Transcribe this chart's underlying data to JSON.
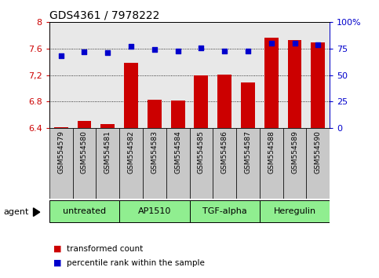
{
  "title": "GDS4361 / 7978222",
  "samples": [
    "GSM554579",
    "GSM554580",
    "GSM554581",
    "GSM554582",
    "GSM554583",
    "GSM554584",
    "GSM554585",
    "GSM554586",
    "GSM554587",
    "GSM554588",
    "GSM554589",
    "GSM554590"
  ],
  "bar_values": [
    6.41,
    6.5,
    6.46,
    7.38,
    6.83,
    6.81,
    7.2,
    7.21,
    7.09,
    7.77,
    7.73,
    7.7
  ],
  "dot_values": [
    68,
    72,
    71,
    77,
    74,
    73,
    76,
    73,
    73,
    80,
    80,
    79
  ],
  "ylim_left": [
    6.4,
    8.0
  ],
  "ylim_right": [
    0,
    100
  ],
  "yticks_left": [
    6.4,
    6.8,
    7.2,
    7.6,
    8.0
  ],
  "yticks_right": [
    0,
    25,
    50,
    75,
    100
  ],
  "ytick_labels_left": [
    "6.4",
    "6.8",
    "7,2",
    "7.6",
    "8"
  ],
  "ytick_labels_right": [
    "0",
    "25",
    "50",
    "75",
    "100%"
  ],
  "groups": [
    {
      "label": "untreated",
      "start": 0,
      "end": 3
    },
    {
      "label": "AP1510",
      "start": 3,
      "end": 6
    },
    {
      "label": "TGF-alpha",
      "start": 6,
      "end": 9
    },
    {
      "label": "Heregulin",
      "start": 9,
      "end": 12
    }
  ],
  "bar_color": "#cc0000",
  "dot_color": "#0000cc",
  "bar_base": 6.4,
  "bg_color": "#ffffff",
  "xticklabel_bg_color": "#c8c8c8",
  "group_bg_color": "#90ee90",
  "legend_bar_label": "transformed count",
  "legend_dot_label": "percentile rank within the sample",
  "agent_label": "agent"
}
